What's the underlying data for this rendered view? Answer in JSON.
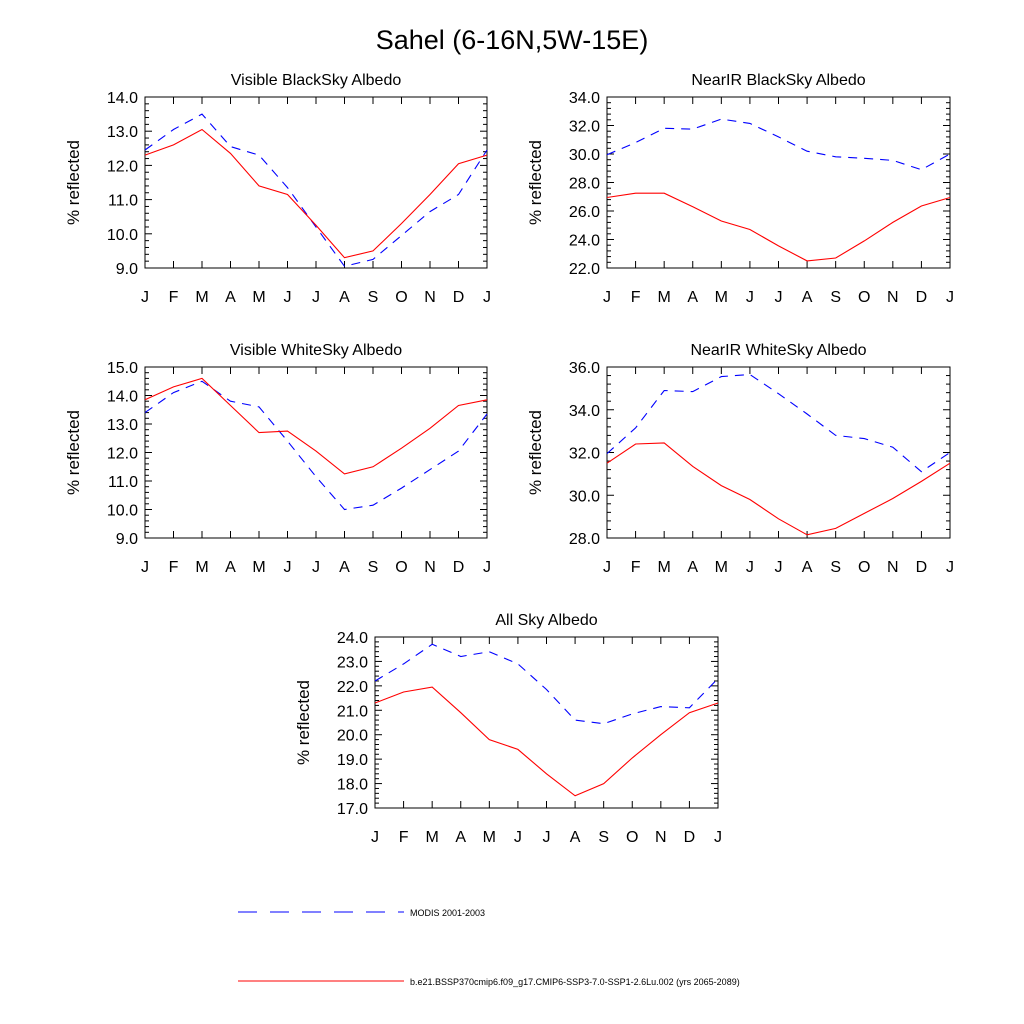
{
  "figure": {
    "title": "Sahel (6-16N,5W-15E)"
  },
  "legend": {
    "placement": "bottom",
    "entries": [
      {
        "label": "MODIS 2001-2003",
        "color": "#0000ff",
        "dash": "dashed"
      },
      {
        "label": "b.e21.BSSP370cmip6.f09_g17.CMIP6-SSP3-7.0-SSP1-2.6Lu.002 (yrs 2065-2089)",
        "color": "#ff0000",
        "dash": "solid"
      }
    ]
  },
  "chart_data": [
    {
      "type": "line",
      "title": "Visible BlackSky Albedo",
      "xlabel": "",
      "ylabel": "% reflected",
      "categories": [
        "J",
        "F",
        "M",
        "A",
        "M",
        "J",
        "J",
        "A",
        "S",
        "O",
        "N",
        "D",
        "J"
      ],
      "ylim": [
        9.0,
        14.0
      ],
      "yticks": [
        "9.0",
        "10.0",
        "11.0",
        "12.0",
        "13.0",
        "14.0"
      ],
      "grid": false,
      "series": [
        {
          "name": "MODIS 2001-2003",
          "color": "#0000ff",
          "dash": "dashed",
          "values": [
            12.45,
            13.05,
            13.5,
            12.55,
            12.3,
            11.35,
            10.2,
            9.05,
            9.25,
            9.95,
            10.65,
            11.15,
            12.45
          ]
        },
        {
          "name": "b.e21.BSSP370cmip6.f09_g17.CMIP6-SSP3-7.0-SSP1-2.6Lu.002 (yrs 2065-2089)",
          "color": "#ff0000",
          "dash": "solid",
          "values": [
            12.3,
            12.6,
            13.05,
            12.35,
            11.4,
            11.15,
            10.25,
            9.3,
            9.5,
            10.3,
            11.15,
            12.05,
            12.3
          ]
        }
      ]
    },
    {
      "type": "line",
      "title": "NearIR BlackSky Albedo",
      "xlabel": "",
      "ylabel": "% reflected",
      "categories": [
        "J",
        "F",
        "M",
        "A",
        "M",
        "J",
        "J",
        "A",
        "S",
        "O",
        "N",
        "D",
        "J"
      ],
      "ylim": [
        22.0,
        34.0
      ],
      "yticks": [
        "22.0",
        "24.0",
        "26.0",
        "28.0",
        "30.0",
        "32.0",
        "34.0"
      ],
      "grid": false,
      "series": [
        {
          "name": "MODIS 2001-2003",
          "color": "#0000ff",
          "dash": "dashed",
          "values": [
            29.95,
            30.8,
            31.8,
            31.75,
            32.45,
            32.15,
            31.2,
            30.2,
            29.8,
            29.7,
            29.55,
            28.9,
            30.0
          ]
        },
        {
          "name": "b.e21.BSSP370cmip6.f09_g17.CMIP6-SSP3-7.0-SSP1-2.6Lu.002 (yrs 2065-2089)",
          "color": "#ff0000",
          "dash": "solid",
          "values": [
            26.95,
            27.25,
            27.25,
            26.3,
            25.3,
            24.7,
            23.55,
            22.5,
            22.7,
            23.9,
            25.2,
            26.35,
            26.95
          ]
        }
      ]
    },
    {
      "type": "line",
      "title": "Visible WhiteSky Albedo",
      "xlabel": "",
      "ylabel": "% reflected",
      "categories": [
        "J",
        "F",
        "M",
        "A",
        "M",
        "J",
        "J",
        "A",
        "S",
        "O",
        "N",
        "D",
        "J"
      ],
      "ylim": [
        9.0,
        15.0
      ],
      "yticks": [
        "9.0",
        "10.0",
        "11.0",
        "12.0",
        "13.0",
        "14.0",
        "15.0"
      ],
      "grid": false,
      "series": [
        {
          "name": "MODIS 2001-2003",
          "color": "#0000ff",
          "dash": "dashed",
          "values": [
            13.4,
            14.1,
            14.5,
            13.8,
            13.6,
            12.4,
            11.15,
            10.0,
            10.15,
            10.75,
            11.4,
            12.05,
            13.35
          ]
        },
        {
          "name": "b.e21.BSSP370cmip6.f09_g17.CMIP6-SSP3-7.0-SSP1-2.6Lu.002 (yrs 2065-2089)",
          "color": "#ff0000",
          "dash": "solid",
          "values": [
            13.85,
            14.3,
            14.6,
            13.65,
            12.7,
            12.75,
            12.05,
            11.25,
            11.5,
            12.15,
            12.85,
            13.65,
            13.85
          ]
        }
      ]
    },
    {
      "type": "line",
      "title": "NearIR WhiteSky Albedo",
      "xlabel": "",
      "ylabel": "% reflected",
      "categories": [
        "J",
        "F",
        "M",
        "A",
        "M",
        "J",
        "J",
        "A",
        "S",
        "O",
        "N",
        "D",
        "J"
      ],
      "ylim": [
        28.0,
        36.0
      ],
      "yticks": [
        "28.0",
        "30.0",
        "32.0",
        "34.0",
        "36.0"
      ],
      "grid": false,
      "series": [
        {
          "name": "MODIS 2001-2003",
          "color": "#0000ff",
          "dash": "dashed",
          "values": [
            31.95,
            33.15,
            34.9,
            34.85,
            35.55,
            35.65,
            34.75,
            33.8,
            32.8,
            32.65,
            32.25,
            31.1,
            32.0
          ]
        },
        {
          "name": "b.e21.BSSP370cmip6.f09_g17.CMIP6-SSP3-7.0-SSP1-2.6Lu.002 (yrs 2065-2089)",
          "color": "#ff0000",
          "dash": "solid",
          "values": [
            31.5,
            32.4,
            32.45,
            31.35,
            30.45,
            29.8,
            28.9,
            28.15,
            28.45,
            29.15,
            29.85,
            30.65,
            31.5
          ]
        }
      ]
    },
    {
      "type": "line",
      "title": "All Sky Albedo",
      "xlabel": "",
      "ylabel": "% reflected",
      "categories": [
        "J",
        "F",
        "M",
        "A",
        "M",
        "J",
        "J",
        "A",
        "S",
        "O",
        "N",
        "D",
        "J"
      ],
      "ylim": [
        17.0,
        24.0
      ],
      "yticks": [
        "17.0",
        "18.0",
        "19.0",
        "20.0",
        "21.0",
        "22.0",
        "23.0",
        "24.0"
      ],
      "grid": false,
      "series": [
        {
          "name": "MODIS 2001-2003",
          "color": "#0000ff",
          "dash": "dashed",
          "values": [
            22.2,
            22.9,
            23.7,
            23.2,
            23.4,
            22.9,
            21.85,
            20.6,
            20.45,
            20.85,
            21.15,
            21.1,
            22.3
          ]
        },
        {
          "name": "b.e21.BSSP370cmip6.f09_g17.CMIP6-SSP3-7.0-SSP1-2.6Lu.002 (yrs 2065-2089)",
          "color": "#ff0000",
          "dash": "solid",
          "values": [
            21.3,
            21.75,
            21.95,
            20.9,
            19.8,
            19.4,
            18.4,
            17.5,
            18.0,
            19.05,
            20.0,
            20.9,
            21.3
          ]
        }
      ]
    }
  ]
}
